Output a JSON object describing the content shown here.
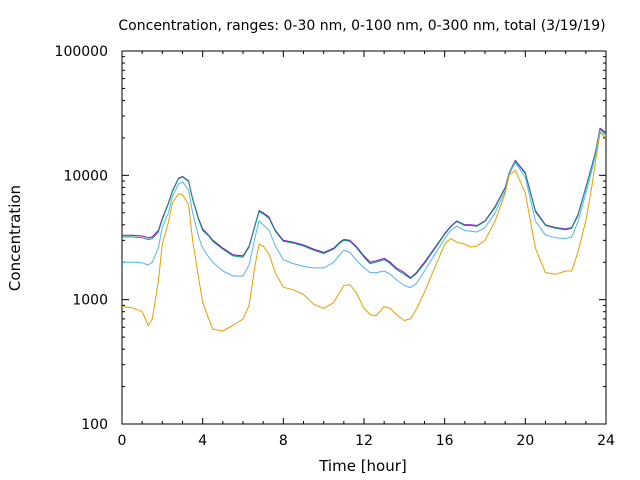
{
  "chart_data": {
    "type": "line",
    "title": "Concentration, ranges: 0-30 nm, 0-100 nm, 0-300 nm, total (3/19/19)",
    "xlabel": "Time [hour]",
    "ylabel": "Concentration",
    "xlim": [
      0,
      24
    ],
    "ylim": [
      100,
      100000
    ],
    "yscale": "log",
    "grid": false,
    "legend": "none",
    "x_ticks": [
      "0",
      "4",
      "8",
      "12",
      "16",
      "20",
      "24"
    ],
    "y_ticks": [
      "100",
      "1000",
      "10000",
      "100000"
    ],
    "x_tick_values": [
      0,
      4,
      8,
      12,
      16,
      20,
      24
    ],
    "y_tick_values": [
      100,
      1000,
      10000,
      100000
    ],
    "x": [
      0,
      0.5,
      1,
      1.3,
      1.5,
      1.8,
      2,
      2.3,
      2.5,
      2.8,
      3,
      3.3,
      3.5,
      3.8,
      4,
      4.3,
      4.5,
      5,
      5.5,
      6,
      6.3,
      6.6,
      6.8,
      7,
      7.3,
      7.6,
      8,
      8.5,
      9,
      9.5,
      10,
      10.5,
      10.8,
      11,
      11.3,
      11.6,
      12,
      12.3,
      12.6,
      13,
      13.3,
      13.6,
      14,
      14.3,
      14.6,
      15,
      15.5,
      16,
      16.3,
      16.6,
      17,
      17.3,
      17.6,
      18,
      18.5,
      19,
      19.2,
      19.5,
      20,
      20.5,
      21,
      21.5,
      22,
      22.3,
      22.6,
      23,
      23.3,
      23.5,
      23.7,
      24
    ],
    "series": [
      {
        "color": "#9400d3",
        "values": [
          3300,
          3300,
          3250,
          3150,
          3200,
          3600,
          4500,
          6000,
          7500,
          9500,
          9800,
          9000,
          6500,
          4500,
          3700,
          3300,
          3000,
          2600,
          2300,
          2250,
          2700,
          4000,
          5200,
          5000,
          4600,
          3600,
          3000,
          2900,
          2750,
          2550,
          2400,
          2600,
          2900,
          3050,
          3000,
          2700,
          2250,
          2000,
          2050,
          2150,
          2000,
          1800,
          1650,
          1500,
          1650,
          2000,
          2600,
          3400,
          3900,
          4300,
          4000,
          4000,
          3950,
          4300,
          5600,
          8000,
          10500,
          13200,
          10500,
          5200,
          4000,
          3800,
          3700,
          3800,
          4800,
          8000,
          12000,
          16000,
          24000,
          22000
        ]
      },
      {
        "color": "#009e73",
        "values": [
          3200,
          3200,
          3150,
          3050,
          3100,
          3500,
          4400,
          5900,
          7400,
          9400,
          9700,
          8900,
          6400,
          4400,
          3600,
          3250,
          2950,
          2550,
          2250,
          2200,
          2650,
          3950,
          5100,
          4900,
          4500,
          3550,
          2950,
          2850,
          2700,
          2500,
          2350,
          2550,
          2850,
          3000,
          2950,
          2650,
          2200,
          1950,
          2000,
          2100,
          1950,
          1750,
          1600,
          1480,
          1620,
          1950,
          2550,
          3350,
          3850,
          4250,
          3950,
          3950,
          3900,
          4250,
          5500,
          7900,
          10400,
          13000,
          10300,
          5100,
          3950,
          3750,
          3650,
          3750,
          4700,
          7900,
          11900,
          15800,
          23500,
          21500
        ]
      },
      {
        "color": "#56b4e9",
        "values": [
          2000,
          2000,
          1980,
          1900,
          2000,
          2600,
          3800,
          5000,
          6800,
          8500,
          8900,
          7600,
          5000,
          3200,
          2600,
          2200,
          2000,
          1700,
          1550,
          1550,
          1900,
          3200,
          4300,
          4000,
          3600,
          2700,
          2100,
          1950,
          1850,
          1800,
          1800,
          2000,
          2300,
          2500,
          2400,
          2100,
          1800,
          1650,
          1650,
          1700,
          1600,
          1450,
          1300,
          1250,
          1350,
          1700,
          2300,
          3100,
          3600,
          3900,
          3600,
          3550,
          3500,
          3800,
          5000,
          7500,
          10200,
          12700,
          9600,
          4300,
          3300,
          3150,
          3100,
          3200,
          4200,
          7200,
          11000,
          15000,
          22500,
          21000
        ]
      },
      {
        "color": "#e69f00",
        "values": [
          880,
          860,
          800,
          620,
          700,
          1400,
          2800,
          4200,
          6000,
          7100,
          7000,
          5800,
          3000,
          1500,
          950,
          700,
          580,
          560,
          620,
          700,
          900,
          1900,
          2800,
          2700,
          2300,
          1650,
          1260,
          1200,
          1100,
          920,
          850,
          950,
          1150,
          1300,
          1320,
          1150,
          850,
          760,
          740,
          880,
          850,
          760,
          680,
          700,
          840,
          1150,
          1800,
          2800,
          3100,
          2900,
          2800,
          2650,
          2700,
          3000,
          4300,
          7200,
          10000,
          11000,
          7200,
          2600,
          1650,
          1600,
          1700,
          1700,
          2400,
          4300,
          8200,
          13500,
          22000,
          20000
        ]
      }
    ]
  }
}
